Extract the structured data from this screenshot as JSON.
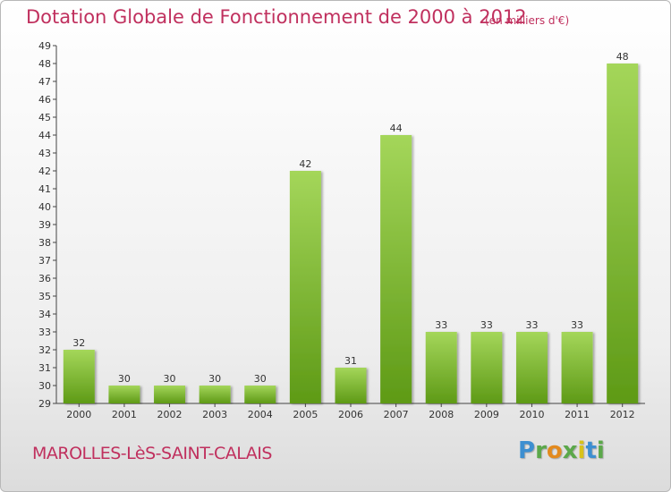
{
  "chart_data": {
    "type": "bar",
    "title": "Dotation Globale de Fonctionnement de 2000 à 2012",
    "unit": "(en milliers d'€)",
    "categories": [
      "2000",
      "2001",
      "2002",
      "2003",
      "2004",
      "2005",
      "2006",
      "2007",
      "2008",
      "2009",
      "2010",
      "2011",
      "2012"
    ],
    "values": [
      32,
      30,
      30,
      30,
      30,
      42,
      31,
      44,
      33,
      33,
      33,
      33,
      48
    ],
    "ylim": [
      29,
      49
    ],
    "yticks": [
      29,
      30,
      31,
      32,
      33,
      34,
      35,
      36,
      37,
      38,
      39,
      40,
      41,
      42,
      43,
      44,
      45,
      46,
      47,
      48,
      49
    ],
    "grid": false,
    "legend": "none",
    "colors": {
      "bar_light": "#a4d65a",
      "bar_dark": "#5e9a16",
      "text": "#c0305e"
    }
  },
  "commune": "MAROLLES-LèS-SAINT-CALAIS",
  "brand": {
    "letters": [
      "P",
      "r",
      "o",
      "x",
      "i",
      "t",
      "i"
    ],
    "colors": [
      "#3d8fd1",
      "#5ba84a",
      "#e38a1e",
      "#5ba84a",
      "#d8c21a",
      "#3d8fd1",
      "#5ba84a"
    ]
  }
}
